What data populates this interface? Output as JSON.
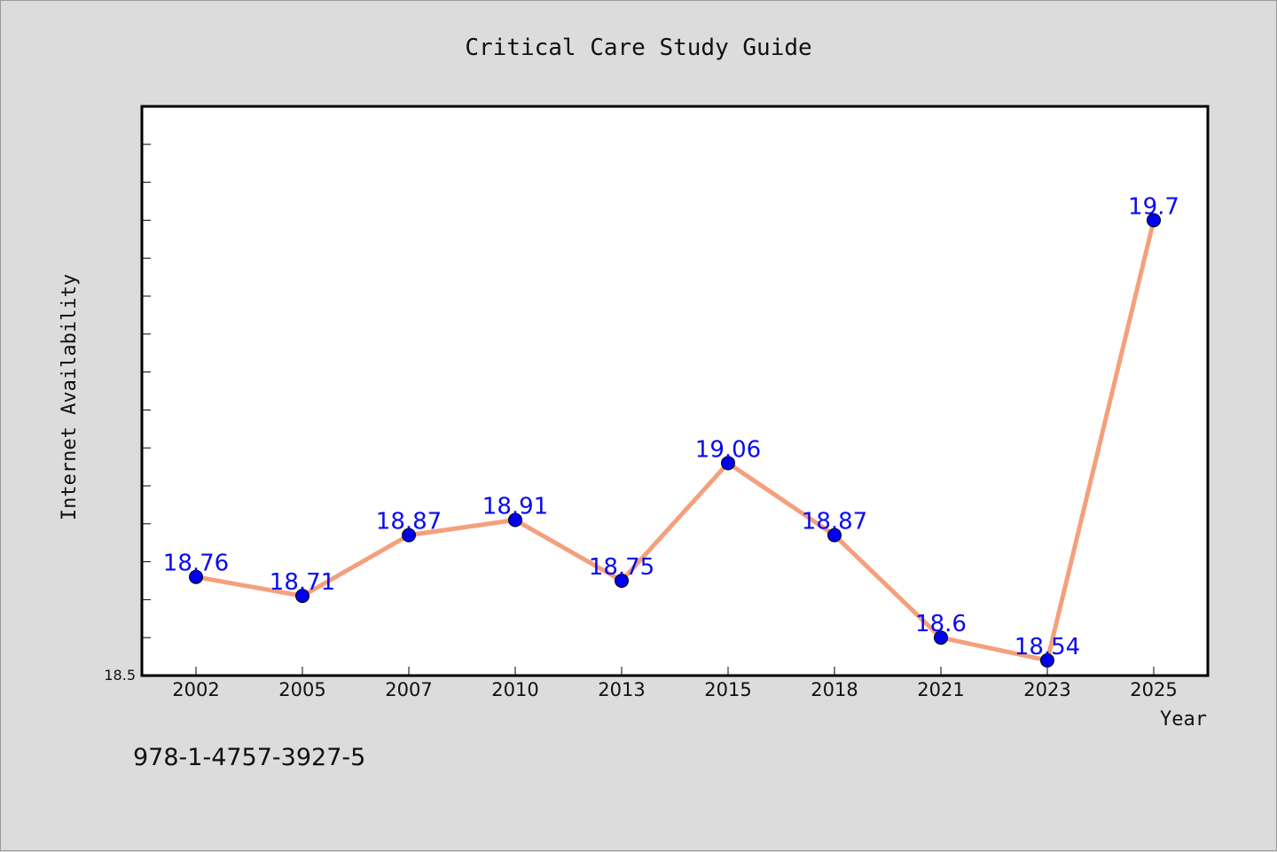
{
  "chart_data": {
    "type": "line",
    "title": "Critical Care Study Guide",
    "xlabel": "Year",
    "ylabel": "Internet Availability",
    "categories": [
      "2002",
      "2005",
      "2007",
      "2010",
      "2013",
      "2015",
      "2018",
      "2021",
      "2023",
      "2025"
    ],
    "series": [
      {
        "values": [
          18.76,
          18.71,
          18.87,
          18.91,
          18.75,
          19.06,
          18.87,
          18.6,
          18.54,
          19.7
        ]
      }
    ],
    "data_labels": [
      "18.76",
      "18.71",
      "18.87",
      "18.91",
      "18.75",
      "19.06",
      "18.87",
      "18.6",
      "18.54",
      "19.7"
    ],
    "ylim": [
      18.5,
      20.0
    ],
    "yticks_labeled": [
      {
        "value": 18.5,
        "label": "18.5"
      }
    ],
    "grid": false,
    "colors": {
      "line": "#f4a07c",
      "marker": "#0000ee",
      "label": "#0a0af0",
      "plot_bg": "#ffffff",
      "page_bg": "#dcdcdc"
    }
  },
  "footer": {
    "isbn": "978-1-4757-3927-5"
  }
}
